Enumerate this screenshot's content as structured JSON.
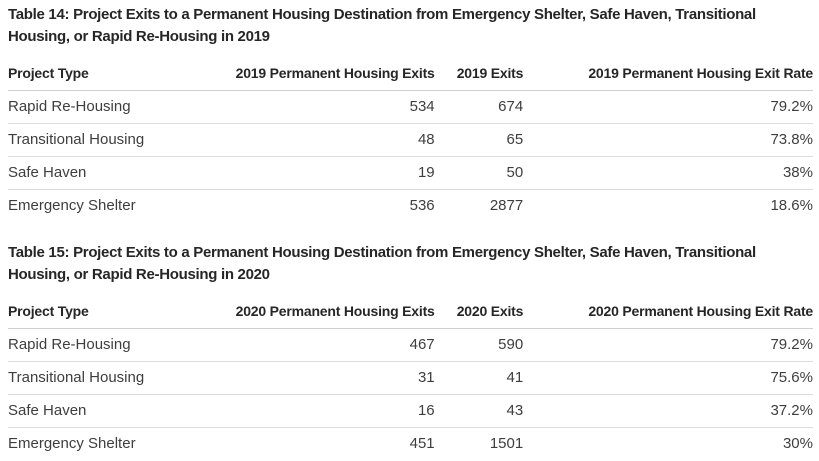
{
  "page": {
    "background": "#ffffff",
    "title_color": "#262626",
    "body_text_color": "#3e3e3e",
    "header_border_color": "#cfcfcf",
    "row_border_color": "#dcdcdc"
  },
  "tables": [
    {
      "title": "Table 14: Project Exits to a Permanent Housing Destination from Emergency Shelter, Safe Haven, Transitional Housing, or Rapid Re-Housing in 2019",
      "columns": [
        "Project Type",
        "2019 Permanent Housing Exits",
        "2019 Exits",
        "2019 Permanent Housing Exit Rate"
      ],
      "rows": [
        [
          "Rapid Re-Housing",
          "534",
          "674",
          "79.2%"
        ],
        [
          "Transitional Housing",
          "48",
          "65",
          "73.8%"
        ],
        [
          "Safe Haven",
          "19",
          "50",
          "38%"
        ],
        [
          "Emergency Shelter",
          "536",
          "2877",
          "18.6%"
        ]
      ]
    },
    {
      "title": "Table 15: Project Exits to a Permanent Housing Destination from Emergency Shelter, Safe Haven, Transitional Housing, or Rapid Re-Housing in 2020",
      "columns": [
        "Project Type",
        "2020 Permanent Housing Exits",
        "2020 Exits",
        "2020 Permanent Housing Exit Rate"
      ],
      "rows": [
        [
          "Rapid Re-Housing",
          "467",
          "590",
          "79.2%"
        ],
        [
          "Transitional Housing",
          "31",
          "41",
          "75.6%"
        ],
        [
          "Safe Haven",
          "16",
          "43",
          "37.2%"
        ],
        [
          "Emergency Shelter",
          "451",
          "1501",
          "30%"
        ]
      ]
    }
  ]
}
